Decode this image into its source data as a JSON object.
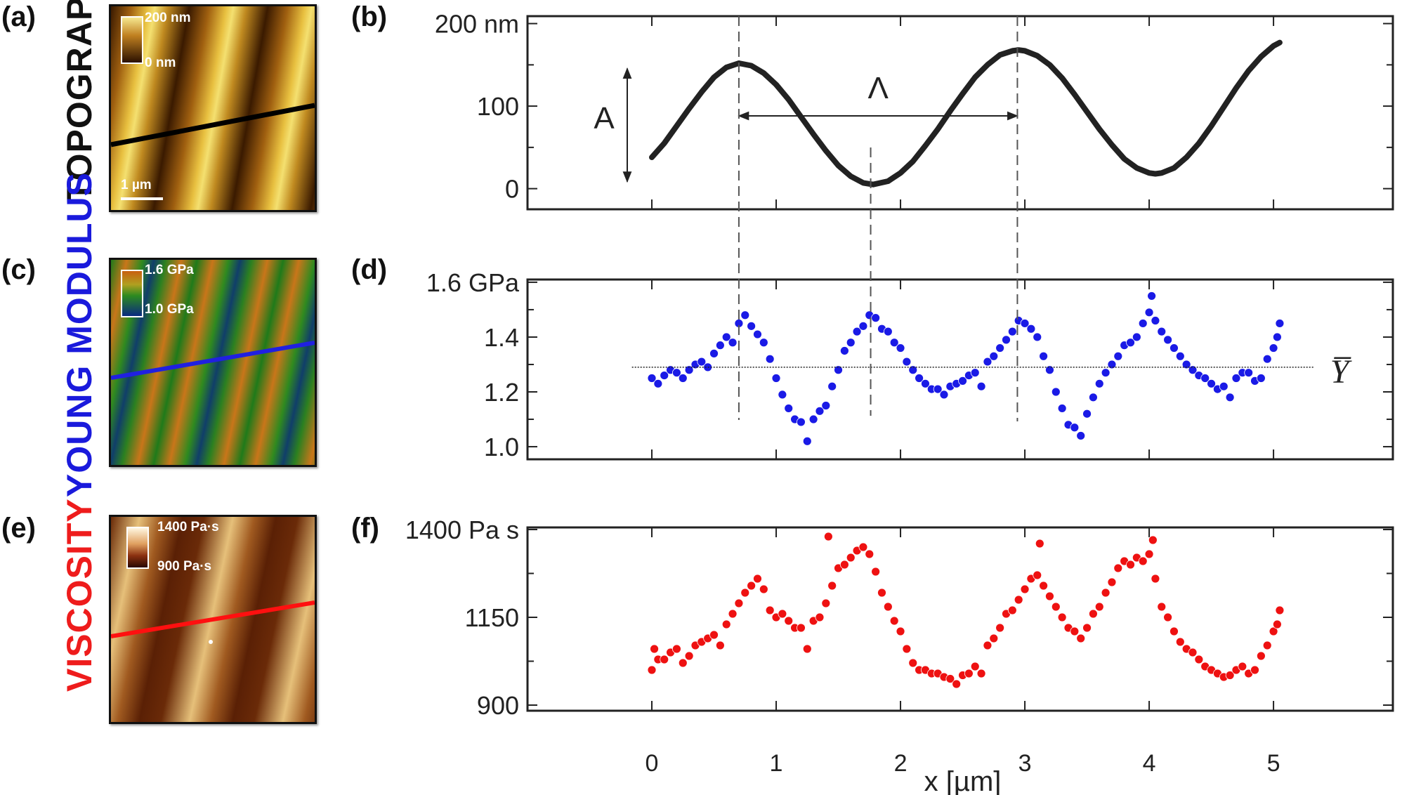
{
  "panels": {
    "a": {
      "label": "(a)",
      "title": "TOPOGRAPHY",
      "title_color": "#111111",
      "colorbar_max": "200 nm",
      "colorbar_min": "0 nm",
      "scalebar": "1 µm",
      "line_color": "#000000"
    },
    "b": {
      "label": "(b)"
    },
    "c": {
      "label": "(c)",
      "title": "YOUNG MODULUS",
      "title_color": "#1a1adc",
      "colorbar_max": "1.6 GPa",
      "colorbar_min": "1.0 GPa",
      "line_color": "#2020e0"
    },
    "d": {
      "label": "(d)"
    },
    "e": {
      "label": "(e)",
      "title": "VISCOSITY",
      "title_color": "#ee1c1c",
      "colorbar_max": "1400 Pa·s",
      "colorbar_min": "900 Pa·s",
      "line_color": "#ff1010"
    },
    "f": {
      "label": "(f)"
    }
  },
  "chart_data": [
    {
      "id": "b",
      "type": "line",
      "color": "#222222",
      "xlim": [
        -1,
        5.96
      ],
      "ylim": [
        -25,
        209
      ],
      "yticks": [
        {
          "v": 200,
          "label": "200 nm"
        },
        {
          "v": 100,
          "label": "100"
        },
        {
          "v": 0,
          "label": "0"
        }
      ],
      "yminor": [
        150,
        50
      ],
      "xticks": [
        0,
        1,
        2,
        3,
        4,
        5
      ],
      "annotations": {
        "amplitude_label": "A",
        "amplitude_range": [
          0,
          200
        ],
        "period_label": "Λ",
        "period_range": [
          0.7,
          2.94
        ],
        "period_y": 100
      },
      "points": [
        [
          0,
          38
        ],
        [
          0.1,
          55
        ],
        [
          0.2,
          76
        ],
        [
          0.3,
          97
        ],
        [
          0.4,
          117
        ],
        [
          0.5,
          135
        ],
        [
          0.6,
          147
        ],
        [
          0.7,
          152
        ],
        [
          0.8,
          149
        ],
        [
          0.9,
          140
        ],
        [
          1.0,
          126
        ],
        [
          1.1,
          108
        ],
        [
          1.2,
          87
        ],
        [
          1.3,
          66
        ],
        [
          1.4,
          46
        ],
        [
          1.5,
          28
        ],
        [
          1.6,
          15
        ],
        [
          1.7,
          7
        ],
        [
          1.78,
          5
        ],
        [
          1.9,
          9
        ],
        [
          2.0,
          19
        ],
        [
          2.1,
          33
        ],
        [
          2.2,
          52
        ],
        [
          2.3,
          72
        ],
        [
          2.4,
          94
        ],
        [
          2.5,
          115
        ],
        [
          2.6,
          135
        ],
        [
          2.7,
          150
        ],
        [
          2.8,
          162
        ],
        [
          2.9,
          167
        ],
        [
          2.95,
          168
        ],
        [
          3.0,
          167
        ],
        [
          3.1,
          161
        ],
        [
          3.2,
          150
        ],
        [
          3.3,
          134
        ],
        [
          3.4,
          114
        ],
        [
          3.5,
          93
        ],
        [
          3.6,
          72
        ],
        [
          3.7,
          53
        ],
        [
          3.8,
          36
        ],
        [
          3.9,
          25
        ],
        [
          4.0,
          19
        ],
        [
          4.05,
          18
        ],
        [
          4.1,
          19
        ],
        [
          4.2,
          25
        ],
        [
          4.3,
          38
        ],
        [
          4.4,
          55
        ],
        [
          4.5,
          76
        ],
        [
          4.6,
          99
        ],
        [
          4.7,
          122
        ],
        [
          4.8,
          143
        ],
        [
          4.9,
          160
        ],
        [
          5.0,
          173
        ],
        [
          5.05,
          177
        ]
      ]
    },
    {
      "id": "d",
      "type": "scatter",
      "color": "#1a1ae6",
      "xlim": [
        -1,
        5.96
      ],
      "ylim": [
        0.954,
        1.61
      ],
      "yticks": [
        {
          "v": 1.6,
          "label": "1.6 GPa"
        },
        {
          "v": 1.4,
          "label": "1.4"
        },
        {
          "v": 1.2,
          "label": "1.2"
        },
        {
          "v": 1.0,
          "label": "1.0"
        }
      ],
      "yminor": [
        1.5,
        1.3,
        1.1
      ],
      "xticks": [
        0,
        1,
        2,
        3,
        4,
        5
      ],
      "mean_line": {
        "label": "Y̅",
        "y": 1.29,
        "x_range": [
          -0.16,
          5.32
        ]
      },
      "points": [
        [
          0,
          1.25
        ],
        [
          0.05,
          1.23
        ],
        [
          0.1,
          1.26
        ],
        [
          0.15,
          1.28
        ],
        [
          0.2,
          1.27
        ],
        [
          0.25,
          1.25
        ],
        [
          0.3,
          1.28
        ],
        [
          0.35,
          1.3
        ],
        [
          0.4,
          1.31
        ],
        [
          0.45,
          1.29
        ],
        [
          0.5,
          1.34
        ],
        [
          0.55,
          1.37
        ],
        [
          0.6,
          1.4
        ],
        [
          0.65,
          1.38
        ],
        [
          0.7,
          1.45
        ],
        [
          0.75,
          1.48
        ],
        [
          0.8,
          1.44
        ],
        [
          0.85,
          1.41
        ],
        [
          0.9,
          1.38
        ],
        [
          0.95,
          1.32
        ],
        [
          1.0,
          1.25
        ],
        [
          1.05,
          1.19
        ],
        [
          1.1,
          1.14
        ],
        [
          1.15,
          1.1
        ],
        [
          1.2,
          1.09
        ],
        [
          1.25,
          1.02
        ],
        [
          1.3,
          1.1
        ],
        [
          1.35,
          1.13
        ],
        [
          1.4,
          1.15
        ],
        [
          1.45,
          1.22
        ],
        [
          1.5,
          1.28
        ],
        [
          1.55,
          1.35
        ],
        [
          1.6,
          1.38
        ],
        [
          1.65,
          1.42
        ],
        [
          1.7,
          1.44
        ],
        [
          1.75,
          1.48
        ],
        [
          1.8,
          1.47
        ],
        [
          1.85,
          1.43
        ],
        [
          1.9,
          1.42
        ],
        [
          1.95,
          1.38
        ],
        [
          2.0,
          1.36
        ],
        [
          2.05,
          1.31
        ],
        [
          2.1,
          1.28
        ],
        [
          2.15,
          1.25
        ],
        [
          2.2,
          1.23
        ],
        [
          2.25,
          1.21
        ],
        [
          2.3,
          1.21
        ],
        [
          2.35,
          1.19
        ],
        [
          2.4,
          1.22
        ],
        [
          2.45,
          1.23
        ],
        [
          2.5,
          1.24
        ],
        [
          2.55,
          1.26
        ],
        [
          2.6,
          1.27
        ],
        [
          2.65,
          1.22
        ],
        [
          2.7,
          1.31
        ],
        [
          2.75,
          1.33
        ],
        [
          2.8,
          1.36
        ],
        [
          2.85,
          1.39
        ],
        [
          2.9,
          1.42
        ],
        [
          2.95,
          1.46
        ],
        [
          3.0,
          1.45
        ],
        [
          3.05,
          1.43
        ],
        [
          3.1,
          1.4
        ],
        [
          3.15,
          1.33
        ],
        [
          3.2,
          1.28
        ],
        [
          3.25,
          1.2
        ],
        [
          3.3,
          1.14
        ],
        [
          3.35,
          1.08
        ],
        [
          3.4,
          1.07
        ],
        [
          3.45,
          1.04
        ],
        [
          3.5,
          1.12
        ],
        [
          3.55,
          1.18
        ],
        [
          3.6,
          1.23
        ],
        [
          3.65,
          1.27
        ],
        [
          3.7,
          1.3
        ],
        [
          3.75,
          1.33
        ],
        [
          3.8,
          1.37
        ],
        [
          3.85,
          1.38
        ],
        [
          3.9,
          1.4
        ],
        [
          3.95,
          1.45
        ],
        [
          4.0,
          1.49
        ],
        [
          4.02,
          1.55
        ],
        [
          4.05,
          1.46
        ],
        [
          4.1,
          1.42
        ],
        [
          4.15,
          1.39
        ],
        [
          4.2,
          1.36
        ],
        [
          4.25,
          1.33
        ],
        [
          4.3,
          1.3
        ],
        [
          4.35,
          1.28
        ],
        [
          4.4,
          1.26
        ],
        [
          4.45,
          1.25
        ],
        [
          4.5,
          1.23
        ],
        [
          4.55,
          1.21
        ],
        [
          4.6,
          1.22
        ],
        [
          4.65,
          1.18
        ],
        [
          4.7,
          1.25
        ],
        [
          4.75,
          1.27
        ],
        [
          4.8,
          1.27
        ],
        [
          4.85,
          1.24
        ],
        [
          4.9,
          1.25
        ],
        [
          4.95,
          1.32
        ],
        [
          5.0,
          1.36
        ],
        [
          5.03,
          1.4
        ],
        [
          5.05,
          1.45
        ]
      ]
    },
    {
      "id": "f",
      "type": "scatter",
      "color": "#ee1111",
      "xlim": [
        -1,
        5.96
      ],
      "ylim": [
        884,
        1406
      ],
      "yticks": [
        {
          "v": 1400,
          "label": "1400 Pa s"
        },
        {
          "v": 1150,
          "label": "1150"
        },
        {
          "v": 900,
          "label": "900"
        }
      ],
      "yminor": [
        1275,
        1025
      ],
      "xticks": [
        0,
        1,
        2,
        3,
        4,
        5
      ],
      "xtick_labels": [
        "0",
        "1",
        "2",
        "3",
        "4",
        "5"
      ],
      "xlabel": "x [µm]",
      "points": [
        [
          0,
          1000
        ],
        [
          0.02,
          1060
        ],
        [
          0.05,
          1030
        ],
        [
          0.1,
          1030
        ],
        [
          0.15,
          1050
        ],
        [
          0.2,
          1060
        ],
        [
          0.25,
          1020
        ],
        [
          0.3,
          1040
        ],
        [
          0.35,
          1070
        ],
        [
          0.4,
          1080
        ],
        [
          0.45,
          1090
        ],
        [
          0.5,
          1100
        ],
        [
          0.55,
          1070
        ],
        [
          0.6,
          1130
        ],
        [
          0.65,
          1160
        ],
        [
          0.7,
          1190
        ],
        [
          0.75,
          1220
        ],
        [
          0.8,
          1240
        ],
        [
          0.85,
          1260
        ],
        [
          0.9,
          1230
        ],
        [
          0.95,
          1170
        ],
        [
          1.0,
          1150
        ],
        [
          1.05,
          1160
        ],
        [
          1.1,
          1140
        ],
        [
          1.15,
          1120
        ],
        [
          1.2,
          1120
        ],
        [
          1.25,
          1060
        ],
        [
          1.3,
          1140
        ],
        [
          1.35,
          1150
        ],
        [
          1.4,
          1190
        ],
        [
          1.42,
          1380
        ],
        [
          1.45,
          1240
        ],
        [
          1.5,
          1290
        ],
        [
          1.55,
          1300
        ],
        [
          1.6,
          1320
        ],
        [
          1.65,
          1340
        ],
        [
          1.7,
          1350
        ],
        [
          1.75,
          1330
        ],
        [
          1.8,
          1280
        ],
        [
          1.85,
          1220
        ],
        [
          1.9,
          1180
        ],
        [
          1.95,
          1140
        ],
        [
          2.0,
          1110
        ],
        [
          2.05,
          1060
        ],
        [
          2.1,
          1020
        ],
        [
          2.15,
          1000
        ],
        [
          2.2,
          1000
        ],
        [
          2.25,
          990
        ],
        [
          2.3,
          990
        ],
        [
          2.35,
          980
        ],
        [
          2.4,
          975
        ],
        [
          2.45,
          960
        ],
        [
          2.5,
          985
        ],
        [
          2.55,
          990
        ],
        [
          2.6,
          1010
        ],
        [
          2.65,
          990
        ],
        [
          2.7,
          1070
        ],
        [
          2.75,
          1090
        ],
        [
          2.8,
          1120
        ],
        [
          2.85,
          1160
        ],
        [
          2.9,
          1170
        ],
        [
          2.95,
          1200
        ],
        [
          3.0,
          1230
        ],
        [
          3.05,
          1260
        ],
        [
          3.1,
          1270
        ],
        [
          3.12,
          1360
        ],
        [
          3.15,
          1240
        ],
        [
          3.2,
          1210
        ],
        [
          3.25,
          1180
        ],
        [
          3.3,
          1150
        ],
        [
          3.35,
          1120
        ],
        [
          3.4,
          1110
        ],
        [
          3.45,
          1090
        ],
        [
          3.5,
          1120
        ],
        [
          3.55,
          1160
        ],
        [
          3.6,
          1180
        ],
        [
          3.65,
          1220
        ],
        [
          3.7,
          1250
        ],
        [
          3.75,
          1290
        ],
        [
          3.8,
          1310
        ],
        [
          3.85,
          1300
        ],
        [
          3.9,
          1320
        ],
        [
          3.95,
          1310
        ],
        [
          4.0,
          1330
        ],
        [
          4.03,
          1370
        ],
        [
          4.05,
          1260
        ],
        [
          4.1,
          1180
        ],
        [
          4.15,
          1150
        ],
        [
          4.2,
          1110
        ],
        [
          4.25,
          1080
        ],
        [
          4.3,
          1060
        ],
        [
          4.35,
          1050
        ],
        [
          4.4,
          1030
        ],
        [
          4.45,
          1010
        ],
        [
          4.5,
          1000
        ],
        [
          4.55,
          990
        ],
        [
          4.6,
          980
        ],
        [
          4.65,
          985
        ],
        [
          4.7,
          1000
        ],
        [
          4.75,
          1010
        ],
        [
          4.8,
          990
        ],
        [
          4.85,
          1000
        ],
        [
          4.9,
          1040
        ],
        [
          4.95,
          1070
        ],
        [
          5.0,
          1110
        ],
        [
          5.03,
          1130
        ],
        [
          5.05,
          1170
        ]
      ]
    }
  ],
  "guide_lines_x": [
    0.7,
    1.76,
    2.94
  ]
}
